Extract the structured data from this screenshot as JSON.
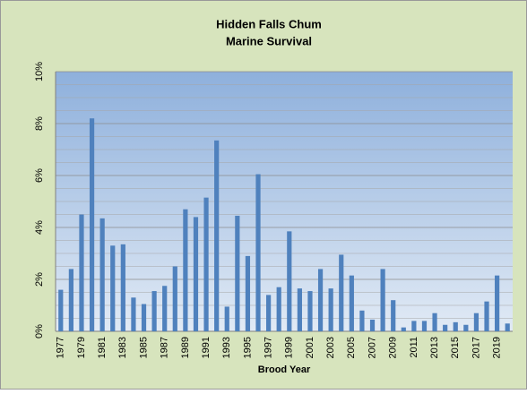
{
  "chart_data": {
    "type": "bar",
    "title": [
      "Hidden Falls Chum",
      "Marine Survival"
    ],
    "x_label": "Brood Year",
    "categories": [
      "1977",
      null,
      "1979",
      null,
      "1981",
      null,
      "1983",
      null,
      "1985",
      null,
      "1987",
      null,
      "1989",
      null,
      "1991",
      null,
      "1993",
      null,
      "1995",
      null,
      "1997",
      null,
      "1999",
      null,
      "2001",
      null,
      "2003",
      null,
      "2005",
      null,
      "2007",
      null,
      "2009",
      null,
      "2011",
      null,
      "2013",
      null,
      "2015",
      null,
      "2017",
      null,
      "2019",
      null
    ],
    "values": [
      1.6,
      2.4,
      4.5,
      8.2,
      4.35,
      3.3,
      3.35,
      1.3,
      1.05,
      1.55,
      1.75,
      2.5,
      4.7,
      4.4,
      5.15,
      7.35,
      0.95,
      4.45,
      2.9,
      6.05,
      1.4,
      1.7,
      3.85,
      1.65,
      1.55,
      2.4,
      1.65,
      2.95,
      2.15,
      0.8,
      0.45,
      2.4,
      1.2,
      0.15,
      0.4,
      0.4,
      0.7,
      0.25,
      0.35,
      0.25,
      0.7,
      1.15,
      2.15,
      0.3
    ],
    "color": "#4f81bd",
    "ylim": [
      0,
      10
    ],
    "yticks": [
      {
        "value": 0,
        "label": "0%"
      },
      {
        "value": 2,
        "label": "2%"
      },
      {
        "value": 4,
        "label": "4%"
      },
      {
        "value": 6,
        "label": "6%"
      },
      {
        "value": 8,
        "label": "8%"
      },
      {
        "value": 10,
        "label": "10%"
      }
    ],
    "minor_yticks": [
      0.5,
      1,
      1.5,
      2.5,
      3,
      3.5,
      4.5,
      5,
      5.5,
      6.5,
      7,
      7.5,
      8.5,
      9,
      9.5
    ],
    "grid": true
  }
}
